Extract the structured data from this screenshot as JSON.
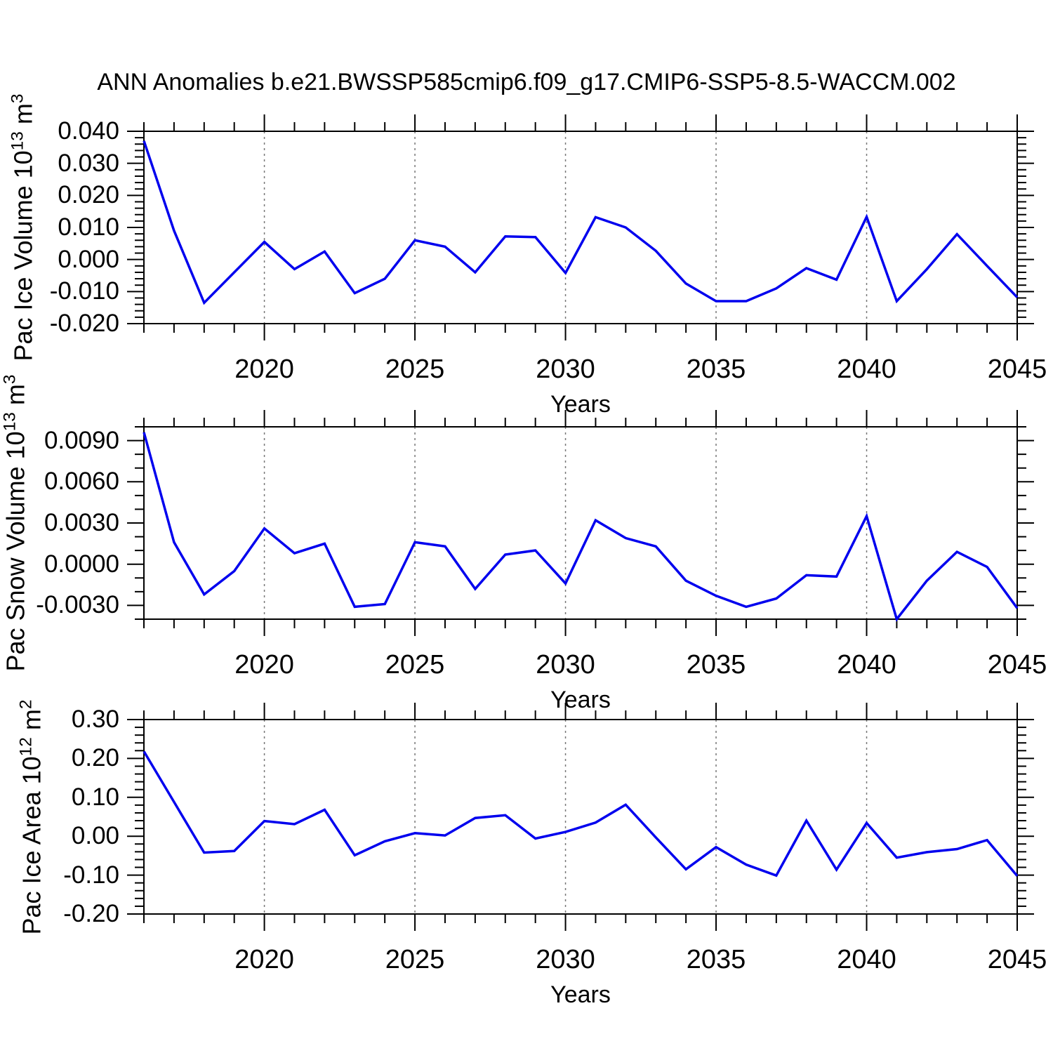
{
  "title": "ANN Anomalies b.e21.BWSSP585cmip6.f09_g17.CMIP6-SSP5-8.5-WACCM.002",
  "line_color": "#0000ee",
  "grid_color": "#777777",
  "axis_color": "#000000",
  "chart_data": [
    {
      "type": "line",
      "name": "pac-ice-volume",
      "ylabel_parts": [
        {
          "text": "Pac Ice Volume 10",
          "sup": false
        },
        {
          "text": "13",
          "sup": true
        },
        {
          "text": " m",
          "sup": false
        },
        {
          "text": "3",
          "sup": true
        }
      ],
      "xlabel": "Years",
      "x_start": 2016,
      "x_end": 2045,
      "xticks": [
        {
          "v": 2020,
          "label": "2020"
        },
        {
          "v": 2025,
          "label": "2025"
        },
        {
          "v": 2030,
          "label": "2030"
        },
        {
          "v": 2035,
          "label": "2035"
        },
        {
          "v": 2040,
          "label": "2040"
        },
        {
          "v": 2045,
          "label": "2045"
        }
      ],
      "grid_years": [
        2020,
        2025,
        2030,
        2035,
        2040
      ],
      "xminor": 1,
      "ylim": [
        -0.02,
        0.04
      ],
      "yticks": [
        {
          "v": 0.04,
          "label": "0.040"
        },
        {
          "v": 0.03,
          "label": "0.030"
        },
        {
          "v": 0.02,
          "label": "0.020"
        },
        {
          "v": 0.01,
          "label": "0.010"
        },
        {
          "v": 0.0,
          "label": "0.000"
        },
        {
          "v": -0.01,
          "label": "-0.010"
        },
        {
          "v": -0.02,
          "label": "-0.020"
        }
      ],
      "yminor": 0.002,
      "values": [
        0.037,
        0.009,
        -0.0135,
        -0.004,
        0.0055,
        -0.003,
        0.0025,
        -0.0105,
        -0.006,
        0.006,
        0.004,
        -0.004,
        0.0072,
        0.007,
        -0.0042,
        0.0132,
        0.01,
        0.0027,
        -0.0075,
        -0.013,
        -0.013,
        -0.009,
        -0.0027,
        -0.0063,
        0.0133,
        -0.013,
        -0.003,
        0.0079,
        -0.002,
        -0.0118
      ]
    },
    {
      "type": "line",
      "name": "pac-snow-volume",
      "ylabel_parts": [
        {
          "text": "Pac Snow Volume 10",
          "sup": false
        },
        {
          "text": "13",
          "sup": true
        },
        {
          "text": " m",
          "sup": false
        },
        {
          "text": "3",
          "sup": true
        }
      ],
      "xlabel": "Years",
      "x_start": 2016,
      "x_end": 2045,
      "xticks": [
        {
          "v": 2020,
          "label": "2020"
        },
        {
          "v": 2025,
          "label": "2025"
        },
        {
          "v": 2030,
          "label": "2030"
        },
        {
          "v": 2035,
          "label": "2035"
        },
        {
          "v": 2040,
          "label": "2040"
        },
        {
          "v": 2045,
          "label": "2045"
        }
      ],
      "grid_years": [
        2020,
        2025,
        2030,
        2035,
        2040
      ],
      "xminor": 1,
      "ylim": [
        -0.004,
        0.01
      ],
      "yticks": [
        {
          "v": 0.009,
          "label": "0.0090"
        },
        {
          "v": 0.006,
          "label": "0.0060"
        },
        {
          "v": 0.003,
          "label": "0.0030"
        },
        {
          "v": 0.0,
          "label": "0.0000"
        },
        {
          "v": -0.003,
          "label": "-0.0030"
        }
      ],
      "yminor": 0.001,
      "values": [
        0.0096,
        0.0016,
        -0.0022,
        -0.0005,
        0.0026,
        0.0008,
        0.0015,
        -0.0031,
        -0.0029,
        0.0016,
        0.0013,
        -0.0018,
        0.0007,
        0.001,
        -0.0014,
        0.0032,
        0.0019,
        0.0013,
        -0.0012,
        -0.0023,
        -0.0031,
        -0.0025,
        -0.0008,
        -0.0009,
        0.0035,
        -0.004,
        -0.0012,
        0.0009,
        -0.0002,
        -0.0032
      ]
    },
    {
      "type": "line",
      "name": "pac-ice-area",
      "ylabel_parts": [
        {
          "text": "Pac Ice Area 10",
          "sup": false
        },
        {
          "text": "12",
          "sup": true
        },
        {
          "text": " m",
          "sup": false
        },
        {
          "text": "2",
          "sup": true
        }
      ],
      "xlabel": "Years",
      "x_start": 2016,
      "x_end": 2045,
      "xticks": [
        {
          "v": 2020,
          "label": "2020"
        },
        {
          "v": 2025,
          "label": "2025"
        },
        {
          "v": 2030,
          "label": "2030"
        },
        {
          "v": 2035,
          "label": "2035"
        },
        {
          "v": 2040,
          "label": "2040"
        },
        {
          "v": 2045,
          "label": "2045"
        }
      ],
      "grid_years": [
        2020,
        2025,
        2030,
        2035,
        2040
      ],
      "xminor": 1,
      "ylim": [
        -0.2,
        0.3
      ],
      "yticks": [
        {
          "v": 0.3,
          "label": "0.30"
        },
        {
          "v": 0.2,
          "label": "0.20"
        },
        {
          "v": 0.1,
          "label": "0.10"
        },
        {
          "v": 0.0,
          "label": "0.00"
        },
        {
          "v": -0.1,
          "label": "-0.10"
        },
        {
          "v": -0.2,
          "label": "-0.20"
        }
      ],
      "yminor": 0.02,
      "values": [
        0.218,
        0.088,
        -0.042,
        -0.038,
        0.039,
        0.031,
        0.068,
        -0.049,
        -0.013,
        0.008,
        0.002,
        0.047,
        0.054,
        -0.006,
        0.011,
        0.035,
        0.081,
        -0.003,
        -0.085,
        -0.028,
        -0.073,
        -0.101,
        0.04,
        -0.086,
        0.034,
        -0.055,
        -0.041,
        -0.033,
        -0.01,
        -0.102
      ]
    }
  ]
}
